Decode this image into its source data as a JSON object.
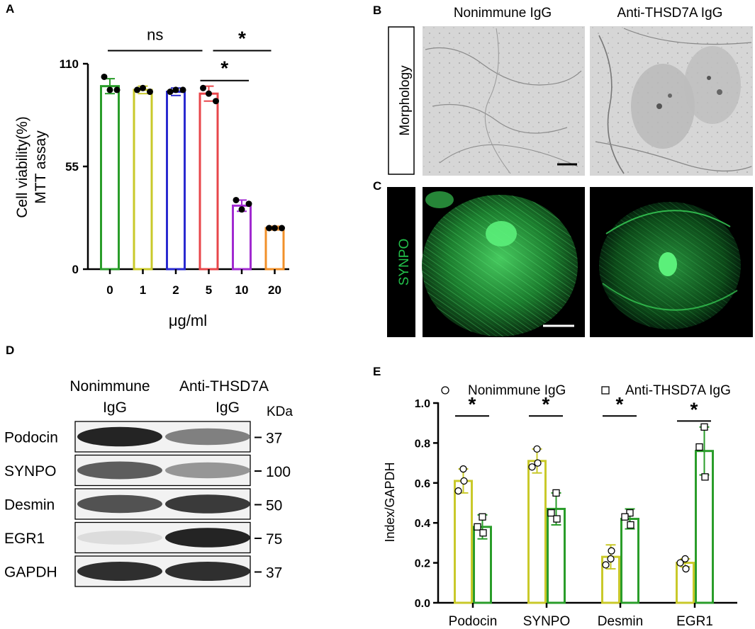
{
  "panels": {
    "A": "A",
    "B": "B",
    "C": "C",
    "D": "D",
    "E": "E"
  },
  "imaging": {
    "col_nonimmune": "Nonimmune IgG",
    "col_anti": "Anti-THSD7A IgG",
    "row_morphology": "Morphology",
    "row_synpo": "SYNPO",
    "synpo_color": "#22c04a"
  },
  "blot": {
    "col_nonimmune_line1": "Nonimmune",
    "col_nonimmune_line2": "IgG",
    "col_anti_line1": "Anti-THSD7A",
    "col_anti_line2": "IgG",
    "unit": "KDa",
    "rows": [
      {
        "label": "Podocin",
        "kda": "37",
        "left_intensity": 0.95,
        "right_intensity": 0.55
      },
      {
        "label": "SYNPO",
        "kda": "100",
        "left_intensity": 0.7,
        "right_intensity": 0.45
      },
      {
        "label": "Desmin",
        "kda": "50",
        "left_intensity": 0.75,
        "right_intensity": 0.85
      },
      {
        "label": "EGR1",
        "kda": "75",
        "left_intensity": 0.15,
        "right_intensity": 0.95
      },
      {
        "label": "GAPDH",
        "kda": "37",
        "left_intensity": 0.9,
        "right_intensity": 0.9
      }
    ]
  },
  "chart_data": [
    {
      "type": "bar",
      "ylabel_line1": "Cell viability(%)",
      "ylabel_line2": "MTT assay",
      "xlabel": "μg/ml",
      "categories": [
        "0",
        "1",
        "2",
        "5",
        "10",
        "20"
      ],
      "values": [
        98,
        96,
        95,
        94,
        34,
        22
      ],
      "errors": [
        4,
        2,
        2,
        4,
        3,
        1
      ],
      "points": [
        [
          103,
          96,
          96
        ],
        [
          96,
          97,
          95
        ],
        [
          95,
          96,
          96
        ],
        [
          97,
          94,
          90
        ],
        [
          37,
          32,
          35
        ],
        [
          22,
          22,
          22
        ]
      ],
      "colors": [
        "#2a9d2a",
        "#c9c92a",
        "#2a2ad0",
        "#e8464a",
        "#a12ad0",
        "#f2902a"
      ],
      "yticks": [
        "0",
        "55",
        "110"
      ],
      "ylim": [
        0,
        110
      ],
      "annotations": [
        {
          "text": "ns",
          "from": "0",
          "to": "5",
          "level": 117
        },
        {
          "text": "*",
          "from": "5",
          "to": "20",
          "level": 117
        },
        {
          "text": "*",
          "from": "5",
          "to": "10",
          "level": 101
        }
      ]
    },
    {
      "type": "bar",
      "ylabel": "Index/GAPDH",
      "categories": [
        "Podocin",
        "SYNPO",
        "Desmin",
        "EGR1"
      ],
      "yticks": [
        "0.0",
        "0.2",
        "0.4",
        "0.6",
        "0.8",
        "1.0"
      ],
      "ylim": [
        0,
        1.0
      ],
      "series": [
        {
          "name": "Nonimmune IgG",
          "color": "#c9c92a",
          "values": [
            0.61,
            0.71,
            0.23,
            0.2
          ],
          "errors": [
            0.06,
            0.06,
            0.06,
            0.02
          ],
          "points": [
            [
              0.67,
              0.56,
              0.61
            ],
            [
              0.77,
              0.68,
              0.7
            ],
            [
              0.22,
              0.19,
              0.26
            ],
            [
              0.22,
              0.2,
              0.17
            ]
          ]
        },
        {
          "name": "Anti-THSD7A IgG",
          "color": "#2a9d2a",
          "values": [
            0.38,
            0.47,
            0.42,
            0.76
          ],
          "errors": [
            0.06,
            0.08,
            0.05,
            0.12
          ],
          "points": [
            [
              0.43,
              0.38,
              0.35
            ],
            [
              0.55,
              0.45,
              0.42
            ],
            [
              0.45,
              0.43,
              0.39
            ],
            [
              0.88,
              0.78,
              0.63
            ]
          ]
        }
      ],
      "annotations": [
        "*",
        "*",
        "*",
        "*"
      ]
    }
  ]
}
